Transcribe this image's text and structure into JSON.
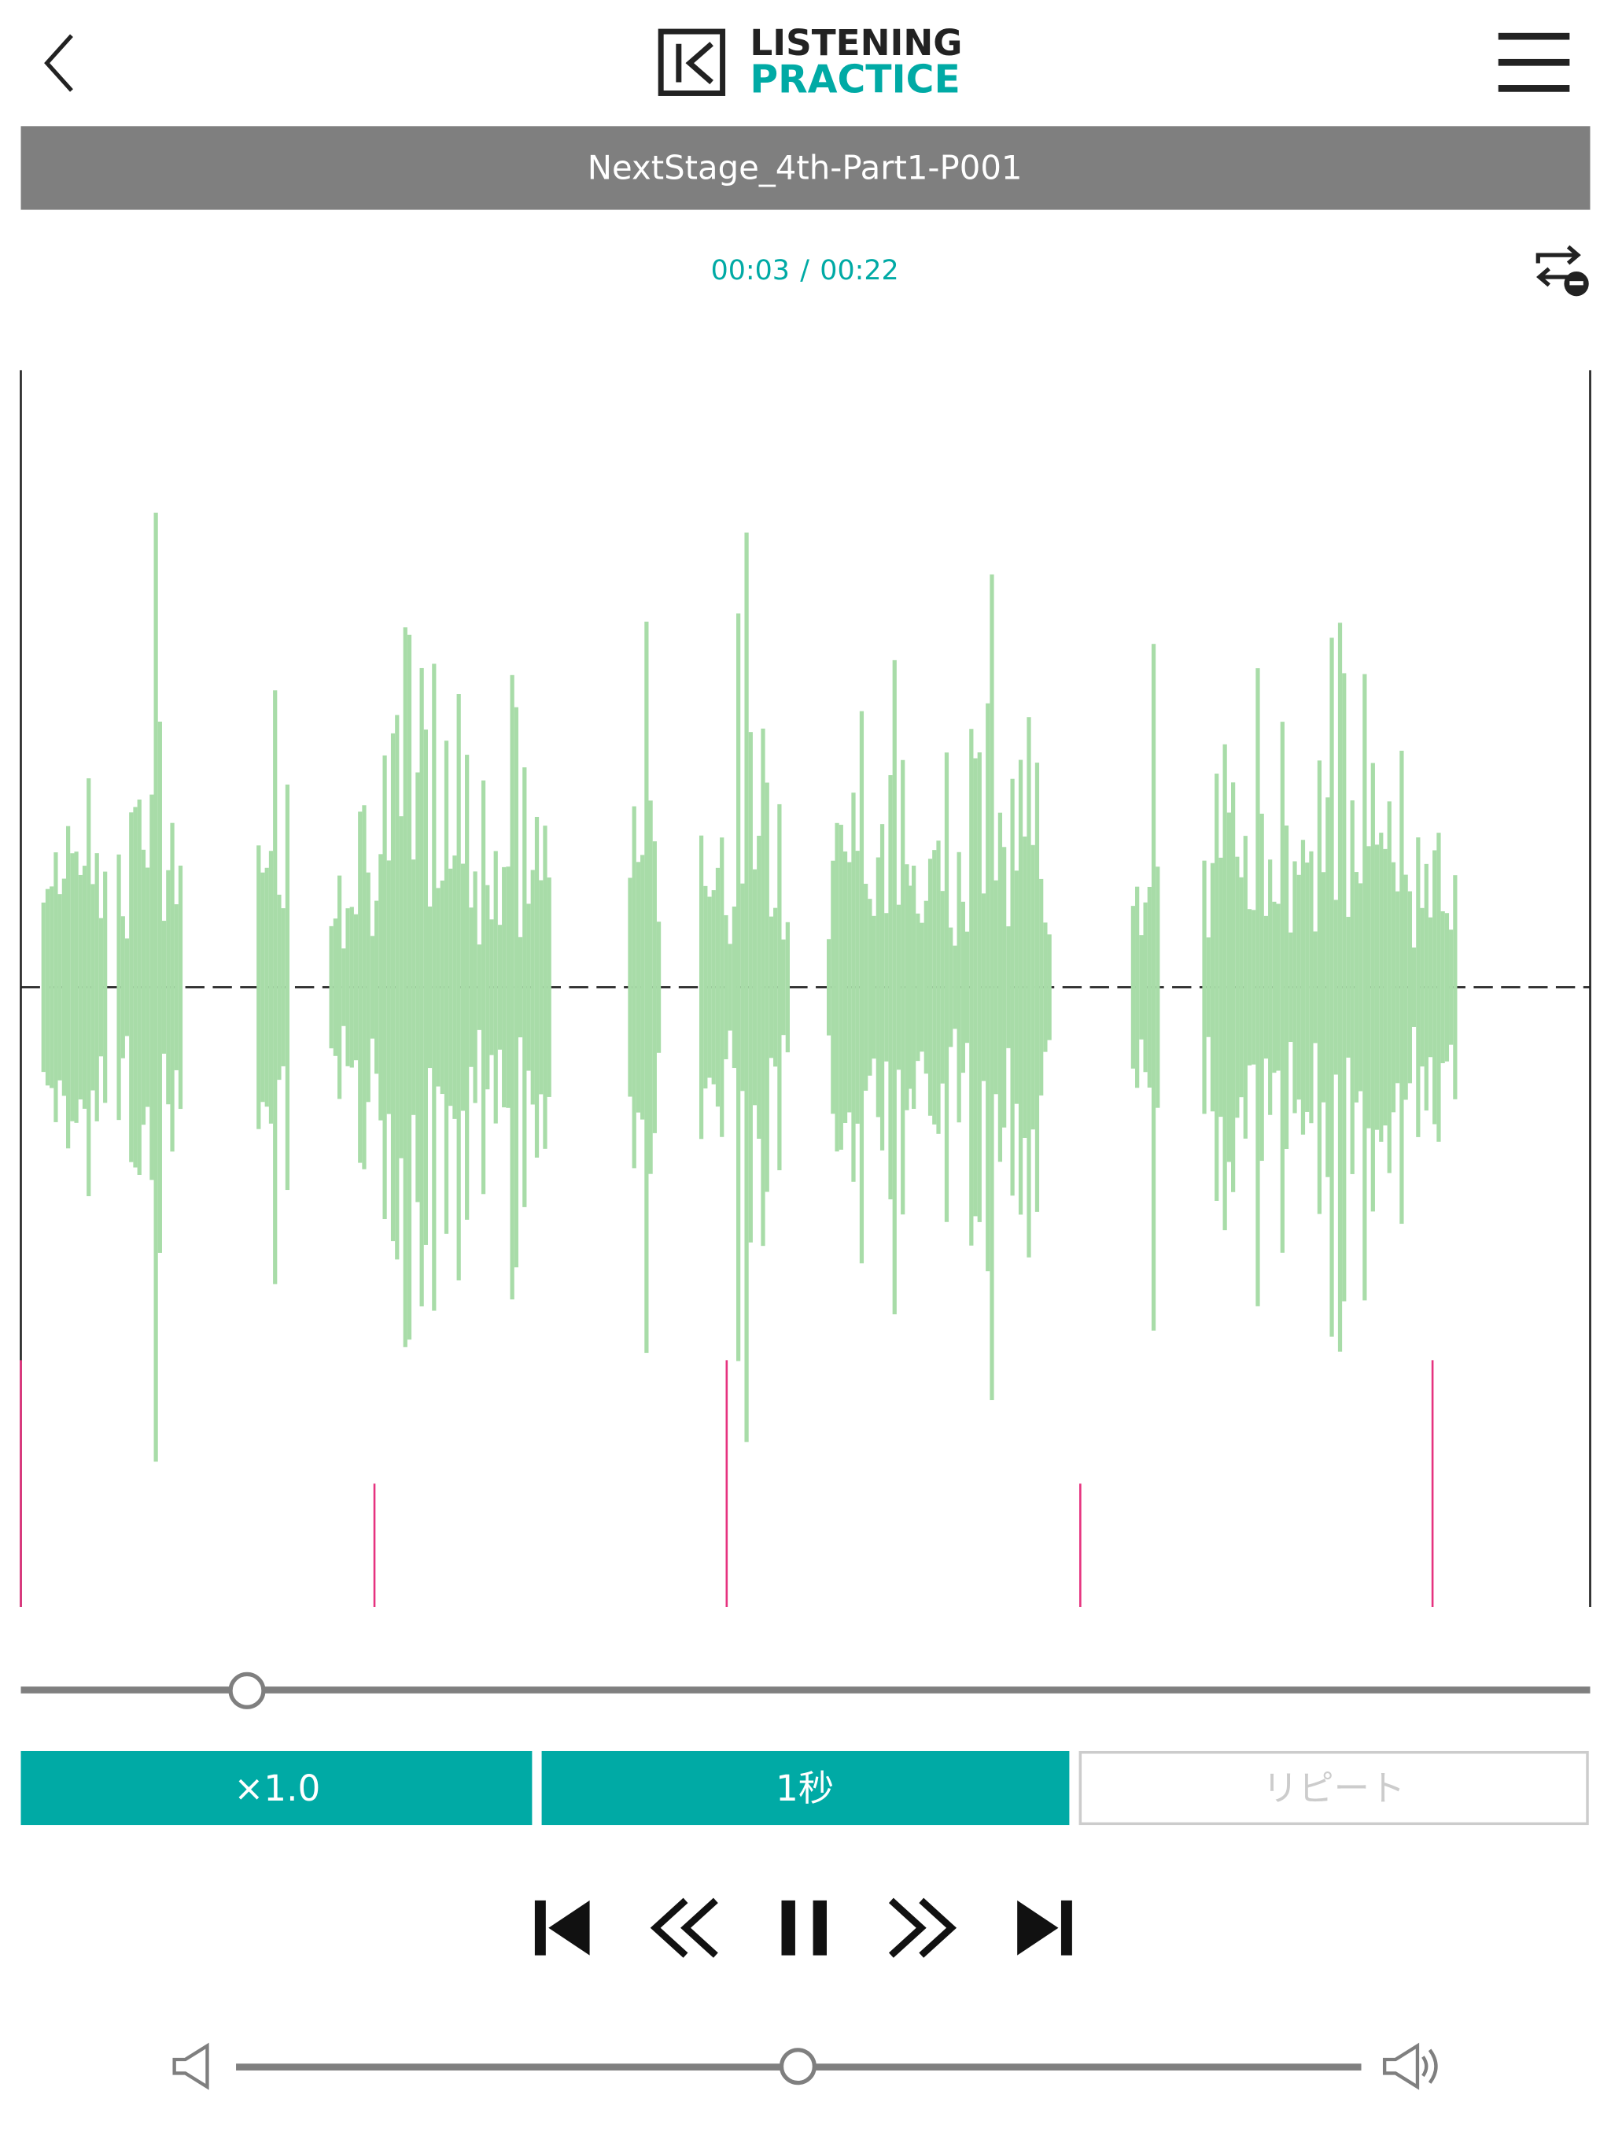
{
  "header": {
    "logo_line1": "LISTENING",
    "logo_line2": "PRACTICE"
  },
  "track": {
    "title": "NextStage_4th-Part1-P001"
  },
  "time": {
    "current": "00:03",
    "separator": "/",
    "total": "00:22"
  },
  "controls": {
    "speed": "×1.0",
    "skip": "1秒",
    "repeat": "リピート"
  }
}
